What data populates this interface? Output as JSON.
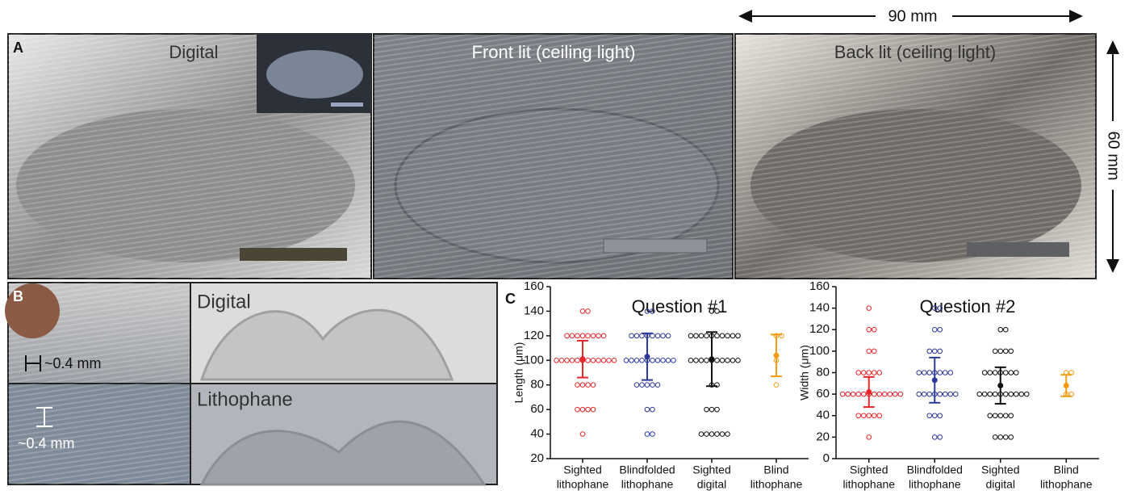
{
  "panels": {
    "a": {
      "label": "A",
      "captions": [
        "Digital",
        "Front lit (ceiling light)",
        "Back lit (ceiling light)"
      ],
      "width": "90 mm",
      "height": "60 mm"
    },
    "b": {
      "label": "B",
      "scale_top": "~0.4 mm",
      "scale_bottom": "~0.4 mm",
      "captions": [
        "Digital",
        "Lithophane"
      ]
    },
    "c": {
      "label": "C"
    }
  },
  "chart_data": [
    {
      "type": "strip",
      "title": "Question #1",
      "y_label": "Length (μm)",
      "ylim": [
        20,
        160
      ],
      "yticks": [
        20,
        40,
        60,
        80,
        100,
        120,
        140,
        160
      ],
      "categories": [
        [
          "Sighted",
          "lithophane"
        ],
        [
          "Blindfolded",
          "lithophane"
        ],
        [
          "Sighted",
          "digital"
        ],
        [
          "Blind",
          "lithophane"
        ]
      ],
      "groups": [
        {
          "color": "#e8262a",
          "mean": 101,
          "sd": 15,
          "values": [
            140,
            140,
            120,
            120,
            120,
            120,
            120,
            120,
            120,
            120,
            100,
            100,
            100,
            100,
            100,
            100,
            100,
            100,
            100,
            100,
            100,
            100,
            80,
            80,
            80,
            80,
            60,
            60,
            60,
            60,
            40
          ]
        },
        {
          "color": "#2b3a9a",
          "mean": 103,
          "sd": 19,
          "values": [
            140,
            140,
            120,
            120,
            120,
            120,
            120,
            120,
            120,
            120,
            100,
            100,
            100,
            100,
            100,
            100,
            100,
            100,
            100,
            100,
            80,
            80,
            80,
            80,
            80,
            60,
            60,
            40,
            40
          ]
        },
        {
          "color": "#111111",
          "mean": 101,
          "sd": 22,
          "values": [
            140,
            140,
            120,
            120,
            120,
            120,
            120,
            120,
            120,
            120,
            120,
            120,
            100,
            100,
            100,
            100,
            100,
            100,
            100,
            100,
            100,
            100,
            80,
            80,
            60,
            60,
            60,
            40,
            40,
            40,
            40,
            40,
            40
          ]
        },
        {
          "color": "#f39c12",
          "mean": 104,
          "sd": 17,
          "values": [
            120,
            120,
            100,
            80
          ]
        }
      ]
    },
    {
      "type": "strip",
      "title": "Question #2",
      "y_label": "Width (μm)",
      "ylim": [
        0,
        160
      ],
      "yticks": [
        0,
        20,
        40,
        60,
        80,
        100,
        120,
        140,
        160
      ],
      "categories": [
        [
          "Sighted",
          "lithophane"
        ],
        [
          "Blindfolded",
          "lithophane"
        ],
        [
          "Sighted",
          "digital"
        ],
        [
          "Blind",
          "lithophane"
        ]
      ],
      "groups": [
        {
          "color": "#e8262a",
          "mean": 62,
          "sd": 14,
          "values": [
            140,
            120,
            120,
            100,
            100,
            80,
            80,
            80,
            80,
            80,
            60,
            60,
            60,
            60,
            60,
            60,
            60,
            60,
            60,
            60,
            60,
            60,
            40,
            40,
            40,
            40,
            40,
            20
          ]
        },
        {
          "color": "#2b3a9a",
          "mean": 73,
          "sd": 21,
          "values": [
            140,
            140,
            120,
            120,
            100,
            100,
            100,
            80,
            80,
            80,
            80,
            80,
            80,
            80,
            60,
            60,
            60,
            60,
            60,
            60,
            60,
            60,
            40,
            40,
            40,
            20,
            20
          ]
        },
        {
          "color": "#111111",
          "mean": 68,
          "sd": 17,
          "values": [
            120,
            120,
            100,
            100,
            100,
            100,
            80,
            80,
            80,
            80,
            80,
            80,
            80,
            60,
            60,
            60,
            60,
            60,
            60,
            60,
            60,
            60,
            60,
            40,
            40,
            40,
            40,
            40,
            20,
            20,
            20,
            20
          ]
        },
        {
          "color": "#f39c12",
          "mean": 68,
          "sd": 10,
          "values": [
            80,
            80,
            60,
            60
          ]
        }
      ]
    }
  ]
}
